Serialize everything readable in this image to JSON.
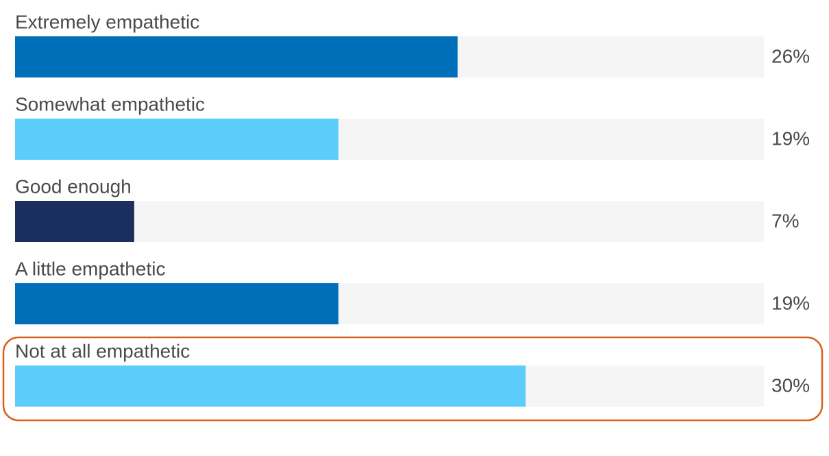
{
  "chart_data": {
    "type": "hbar",
    "categories": [
      "Extremely empathetic",
      "Somewhat empathetic",
      "Good enough",
      "A little empathetic",
      "Not at all empathetic"
    ],
    "values": [
      26,
      19,
      7,
      19,
      30
    ],
    "value_labels": [
      "26%",
      "19%",
      "7%",
      "19%",
      "30%"
    ],
    "colors": [
      "#006fba",
      "#5ccdfa",
      "#1b2f5e",
      "#006fba",
      "#5ccdfa"
    ],
    "track_color": "#f5f5f5",
    "xlim": [
      0,
      44
    ]
  }
}
